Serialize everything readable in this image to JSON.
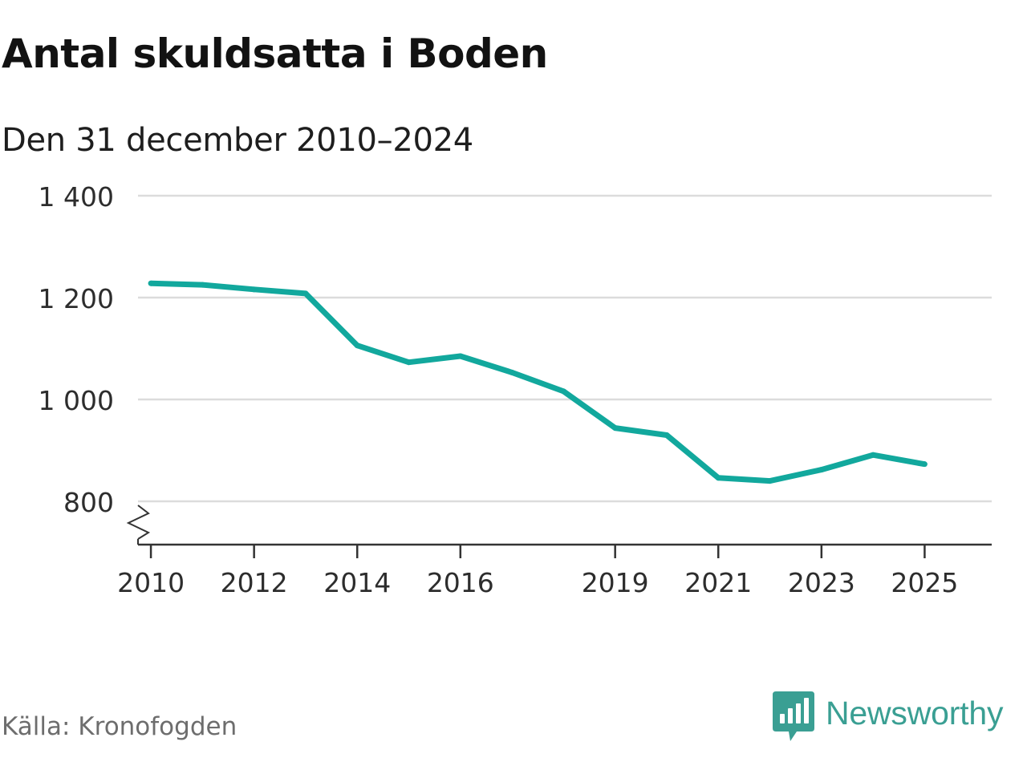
{
  "header": {
    "title": "Antal skuldsatta i Boden",
    "subtitle": "Den 31 december 2010–2024"
  },
  "footer": {
    "source": "Källa: Kronofogden",
    "logo_text": "Newsworthy"
  },
  "colors": {
    "line": "#12a89d",
    "grid": "#dcdcdc",
    "axis": "#333333",
    "brand": "#3a9f93"
  },
  "chart_data": {
    "type": "line",
    "title": "Antal skuldsatta i Boden",
    "subtitle": "Den 31 december 2010–2024",
    "xlabel": "",
    "ylabel": "",
    "xlim": [
      2009.75,
      2026.3
    ],
    "ylim": [
      715,
      1400
    ],
    "y_axis_break": true,
    "grid": true,
    "x_ticks": [
      2010,
      2012,
      2014,
      2016,
      2019,
      2021,
      2023,
      2025
    ],
    "x_tick_labels": [
      "2010",
      "2012",
      "2014",
      "2016",
      "2019",
      "2021",
      "2023",
      "2025"
    ],
    "y_ticks": [
      800,
      1000,
      1200,
      1400
    ],
    "y_tick_labels": [
      "800",
      "1 000",
      "1 200",
      "1 400"
    ],
    "series": [
      {
        "name": "Antal skuldsatta",
        "x": [
          2010,
          2011,
          2012,
          2013,
          2014,
          2015,
          2016,
          2017,
          2018,
          2019,
          2020,
          2021,
          2022,
          2023,
          2024,
          2025
        ],
        "values": [
          1228,
          1225,
          1216,
          1208,
          1106,
          1073,
          1085,
          1053,
          1016,
          944,
          930,
          846,
          840,
          862,
          891,
          873
        ]
      }
    ]
  }
}
